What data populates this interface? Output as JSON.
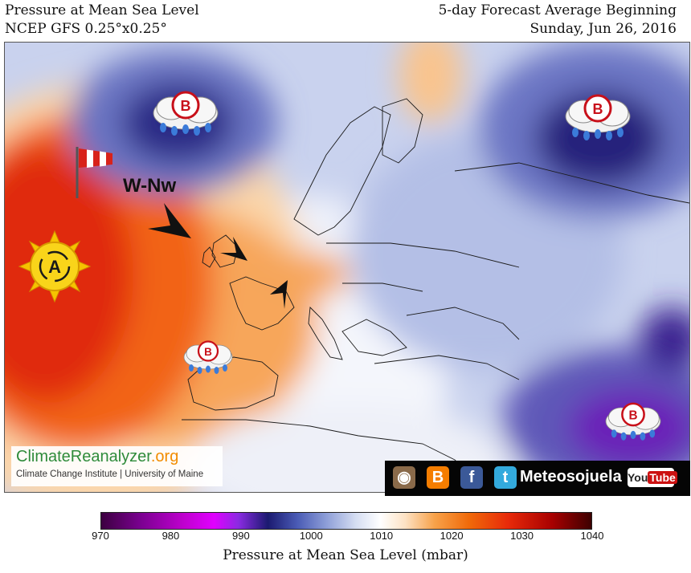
{
  "header": {
    "left_line1": "Pressure at Mean Sea Level",
    "left_line2": "NCEP GFS 0.25°x0.25°",
    "right_line1": "5-day Forecast Average Beginning",
    "right_line2": "Sunday, Jun 26, 2016"
  },
  "map": {
    "annotations": {
      "wind_label": "W-Nw",
      "high_label": "A",
      "low_label": "B"
    },
    "systems": [
      {
        "type": "low",
        "label": "B",
        "location": "Iceland / North Atlantic"
      },
      {
        "type": "low",
        "label": "B",
        "location": "Western Siberia"
      },
      {
        "type": "high",
        "label": "A",
        "location": "Azores"
      },
      {
        "type": "low",
        "label": "B",
        "location": "Iberia"
      },
      {
        "type": "low",
        "label": "B",
        "location": "Middle East"
      }
    ]
  },
  "colorbar": {
    "ticks": [
      "970",
      "980",
      "990",
      "1000",
      "1010",
      "1020",
      "1030",
      "1040"
    ],
    "min": 970,
    "max": 1040,
    "title": "Pressure at Mean Sea Level (mbar)"
  },
  "logo": {
    "part1": "Climate",
    "part2": "Reanalyzer",
    "part3": ".org",
    "subtitle": "Climate Change Institute | University of Maine"
  },
  "social": {
    "name": "Meteosojuela",
    "youtube_you": "You",
    "youtube_tube": "Tube",
    "icons": [
      "instagram-icon",
      "blogger-icon",
      "facebook-icon",
      "twitter-icon",
      "youtube-icon"
    ]
  },
  "colors": {
    "high": "#e8300a",
    "low": "#3a1f8a",
    "low_symbol": "#c8101a"
  }
}
